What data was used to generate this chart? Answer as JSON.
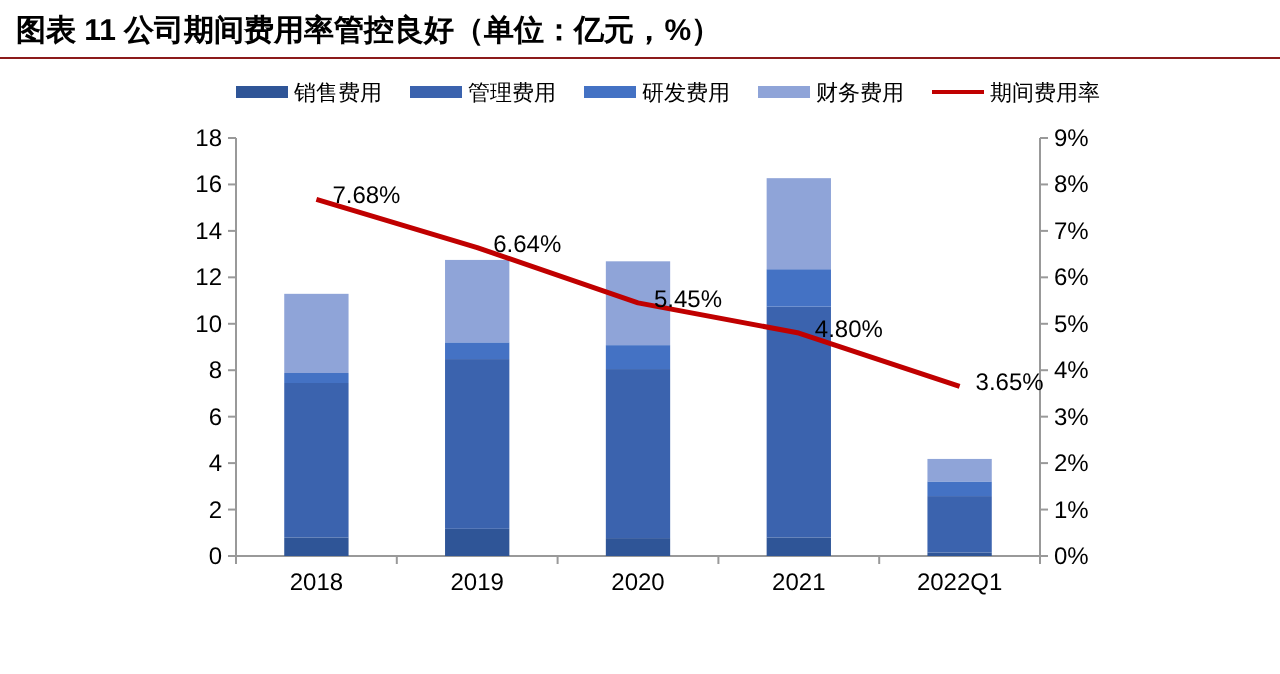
{
  "chart_data": {
    "type": "bar",
    "title": "图表 11 公司期间费用率管控良好（单位：亿元，%）",
    "categories": [
      "2018",
      "2019",
      "2020",
      "2021",
      "2022Q1"
    ],
    "stacked": true,
    "legend": "top",
    "grid": false,
    "series": [
      {
        "name": "销售费用",
        "color": "#2f5597",
        "values": [
          0.8,
          1.17,
          0.77,
          0.8,
          0.15
        ]
      },
      {
        "name": "管理费用",
        "color": "#3b63ae",
        "values": [
          6.65,
          7.31,
          7.28,
          9.94,
          2.43
        ]
      },
      {
        "name": "研发费用",
        "color": "#4472c4",
        "values": [
          0.43,
          0.72,
          1.03,
          1.61,
          0.63
        ]
      },
      {
        "name": "财务费用",
        "color": "#8fa4d8",
        "values": [
          3.41,
          3.55,
          3.61,
          3.92,
          0.97
        ]
      },
      {
        "name": "期间费用率",
        "type": "line",
        "axis": "y2",
        "color": "#c00000",
        "values": [
          7.68,
          6.64,
          5.45,
          4.8,
          3.65
        ],
        "value_labels": [
          "7.68%",
          "6.64%",
          "5.45%",
          "4.80%",
          "3.65%"
        ]
      }
    ],
    "ylim": [
      0,
      18
    ],
    "yticks": [
      0,
      2,
      4,
      6,
      8,
      10,
      12,
      14,
      16,
      18
    ],
    "y2lim": [
      0,
      9
    ],
    "y2ticks": [
      {
        "value": 0,
        "label": "0%"
      },
      {
        "value": 1,
        "label": "1%"
      },
      {
        "value": 2,
        "label": "2%"
      },
      {
        "value": 3,
        "label": "3%"
      },
      {
        "value": 4,
        "label": "4%"
      },
      {
        "value": 5,
        "label": "5%"
      },
      {
        "value": 6,
        "label": "6%"
      },
      {
        "value": 7,
        "label": "7%"
      },
      {
        "value": 8,
        "label": "8%"
      },
      {
        "value": 9,
        "label": "9%"
      }
    ]
  }
}
